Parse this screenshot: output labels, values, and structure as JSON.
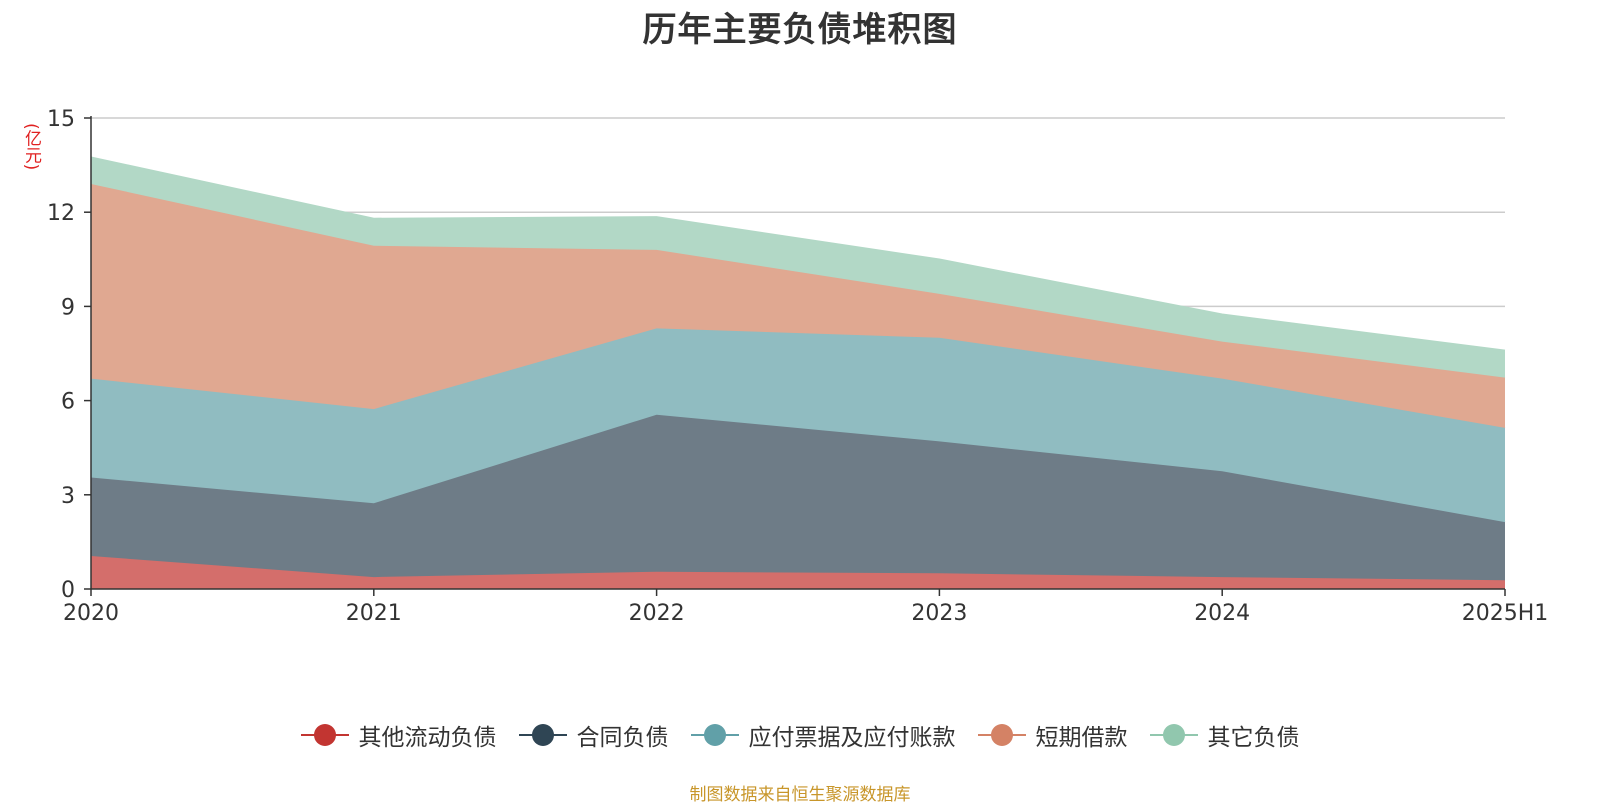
{
  "title": "历年主要负债堆积图",
  "unit": "(亿元)",
  "source": "制图数据来自恒生聚源数据库",
  "chart_data": {
    "type": "area",
    "stacked": true,
    "title": "历年主要负债堆积图",
    "ylabel": "(亿元)",
    "xlabel": "",
    "categories": [
      "2020",
      "2021",
      "2022",
      "2023",
      "2024",
      "2025H1"
    ],
    "ylim": [
      0,
      15
    ],
    "yticks": [
      0,
      3,
      6,
      9,
      12,
      15
    ],
    "grid": true,
    "legend_position": "bottom",
    "series": [
      {
        "name": "其他流动负债",
        "values": [
          1.05,
          0.38,
          0.55,
          0.5,
          0.38,
          0.28
        ],
        "color": "#c23531",
        "fill": "#d46e6b"
      },
      {
        "name": "合同负债",
        "values": [
          2.5,
          2.35,
          5.0,
          4.2,
          3.37,
          1.85
        ],
        "color": "#2f4554",
        "fill": "#6e7c87"
      },
      {
        "name": "应付票据及应付账款",
        "values": [
          3.15,
          3.0,
          2.75,
          3.3,
          2.95,
          3.0
        ],
        "color": "#61a0a8",
        "fill": "#90bcc1"
      },
      {
        "name": "短期借款",
        "values": [
          6.2,
          5.2,
          2.5,
          1.4,
          1.18,
          1.6
        ],
        "color": "#d48265",
        "fill": "#e0a891"
      },
      {
        "name": "其它负债",
        "values": [
          0.85,
          0.87,
          1.05,
          1.1,
          0.87,
          0.87
        ],
        "color": "#91c7ae",
        "fill": "#b2d8c6"
      }
    ]
  }
}
